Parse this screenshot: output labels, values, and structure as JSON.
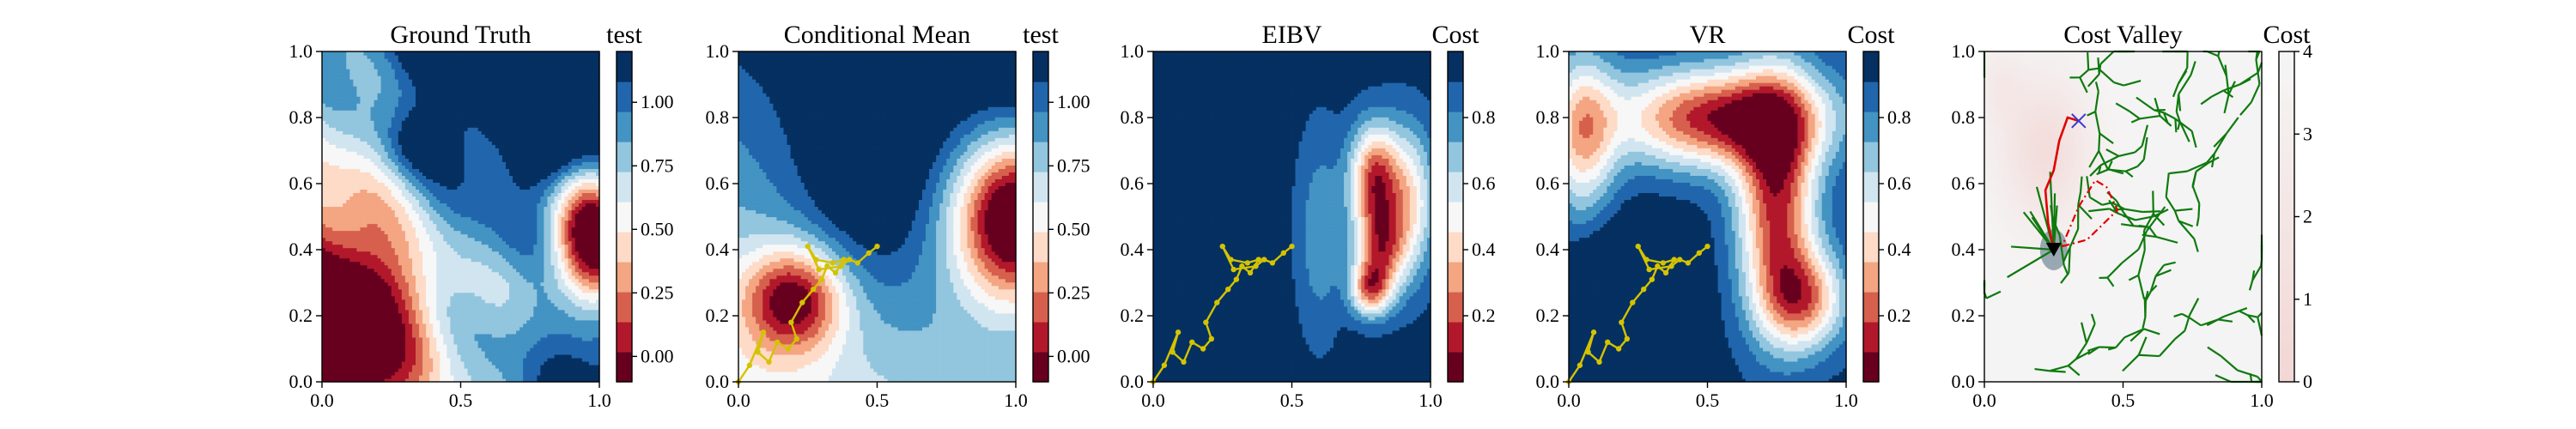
{
  "figure": {
    "background": "#ffffff"
  },
  "colors": {
    "rdbu": [
      "#67001f",
      "#b2182b",
      "#d6604d",
      "#f4a582",
      "#fddbc7",
      "#f7f7f7",
      "#d1e5f0",
      "#92c5de",
      "#4393c3",
      "#2166ac",
      "#053061"
    ],
    "path": "#d4c300",
    "tree": "#0e7a0e",
    "route": "#e00000",
    "goal_marker": "#3a3ad0",
    "cost_valley_low": "#f2d7d5",
    "cost_valley_high": "#f5f5f5"
  },
  "chart_data": [
    {
      "id": "ground-truth",
      "type": "heatmap",
      "title": "Ground Truth",
      "xlim": [
        0,
        1
      ],
      "ylim": [
        0,
        1
      ],
      "x_ticks": [
        "0.0",
        "0.5",
        "1.0"
      ],
      "y_ticks": [
        "0.0",
        "0.2",
        "0.4",
        "0.6",
        "0.8",
        "1.0"
      ],
      "colorbar": {
        "label": "test",
        "range": [
          -0.1,
          1.2
        ],
        "ticks": [
          "0.00",
          "0.25",
          "0.50",
          "0.75",
          "1.00"
        ]
      },
      "overlay": null
    },
    {
      "id": "conditional-mean",
      "type": "heatmap",
      "title": "Conditional Mean",
      "xlim": [
        0,
        1
      ],
      "ylim": [
        0,
        1
      ],
      "x_ticks": [
        "0.0",
        "0.5",
        "1.0"
      ],
      "y_ticks": [
        "0.0",
        "0.2",
        "0.4",
        "0.6",
        "0.8",
        "1.0"
      ],
      "colorbar": {
        "label": "test",
        "range": [
          -0.1,
          1.2
        ],
        "ticks": [
          "0.00",
          "0.25",
          "0.50",
          "0.75",
          "1.00"
        ]
      },
      "overlay": "path"
    },
    {
      "id": "eibv",
      "type": "heatmap",
      "title": "EIBV",
      "xlim": [
        0,
        1
      ],
      "ylim": [
        0,
        1
      ],
      "x_ticks": [
        "0.0",
        "0.5",
        "1.0"
      ],
      "y_ticks": [
        "0.0",
        "0.2",
        "0.4",
        "0.6",
        "0.8",
        "1.0"
      ],
      "colorbar": {
        "label": "Cost",
        "range": [
          0,
          1
        ],
        "ticks": [
          "0.2",
          "0.4",
          "0.6",
          "0.8"
        ]
      },
      "overlay": "path"
    },
    {
      "id": "vr",
      "type": "heatmap",
      "title": "VR",
      "xlim": [
        0,
        1
      ],
      "ylim": [
        0,
        1
      ],
      "x_ticks": [
        "0.0",
        "0.5",
        "1.0"
      ],
      "y_ticks": [
        "0.0",
        "0.2",
        "0.4",
        "0.6",
        "0.8",
        "1.0"
      ],
      "colorbar": {
        "label": "Cost",
        "range": [
          0,
          1
        ],
        "ticks": [
          "0.2",
          "0.4",
          "0.6",
          "0.8"
        ]
      },
      "overlay": "path"
    },
    {
      "id": "cost-valley",
      "type": "heatmap",
      "title": "Cost Valley",
      "xlim": [
        0,
        1
      ],
      "ylim": [
        0,
        1
      ],
      "x_ticks": [
        "0.0",
        "0.5",
        "1.0"
      ],
      "y_ticks": [
        "0.0",
        "0.2",
        "0.4",
        "0.6",
        "0.8",
        "1.0"
      ],
      "colorbar": {
        "label": "Cost",
        "range": [
          0,
          4
        ],
        "ticks": [
          "0",
          "1",
          "2",
          "3",
          "4"
        ]
      },
      "overlay": "tree"
    }
  ],
  "sample_path": [
    [
      0.0,
      0.0
    ],
    [
      0.04,
      0.05
    ],
    [
      0.09,
      0.15
    ],
    [
      0.07,
      0.09
    ],
    [
      0.11,
      0.06
    ],
    [
      0.14,
      0.12
    ],
    [
      0.18,
      0.1
    ],
    [
      0.21,
      0.13
    ],
    [
      0.19,
      0.18
    ],
    [
      0.23,
      0.24
    ],
    [
      0.27,
      0.28
    ],
    [
      0.3,
      0.31
    ],
    [
      0.32,
      0.35
    ],
    [
      0.35,
      0.33
    ],
    [
      0.38,
      0.37
    ],
    [
      0.34,
      0.36
    ],
    [
      0.28,
      0.37
    ],
    [
      0.25,
      0.41
    ],
    [
      0.29,
      0.34
    ],
    [
      0.37,
      0.35
    ],
    [
      0.4,
      0.37
    ],
    [
      0.43,
      0.36
    ],
    [
      0.47,
      0.39
    ],
    [
      0.5,
      0.41
    ]
  ],
  "route": [
    [
      0.25,
      0.4
    ],
    [
      0.23,
      0.48
    ],
    [
      0.22,
      0.58
    ],
    [
      0.25,
      0.64
    ],
    [
      0.27,
      0.73
    ],
    [
      0.3,
      0.8
    ],
    [
      0.34,
      0.79
    ]
  ],
  "dashed_region": [
    [
      0.28,
      0.41
    ],
    [
      0.37,
      0.43
    ],
    [
      0.48,
      0.52
    ],
    [
      0.44,
      0.59
    ],
    [
      0.4,
      0.61
    ],
    [
      0.34,
      0.53
    ],
    [
      0.28,
      0.41
    ]
  ],
  "current_position": [
    0.25,
    0.4
  ],
  "goal_position": [
    0.34,
    0.79
  ]
}
